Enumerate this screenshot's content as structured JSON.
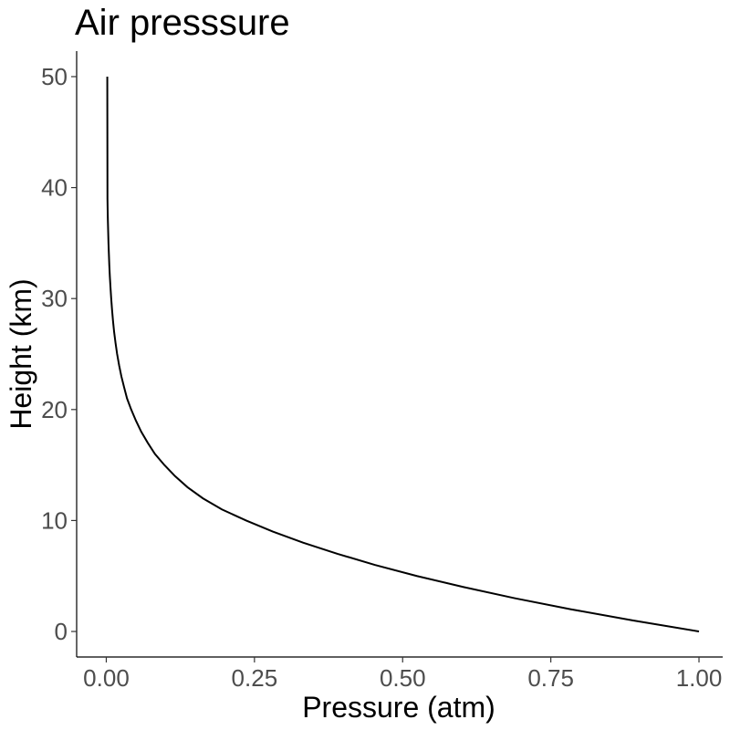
{
  "chart_data": {
    "type": "line",
    "title": "Air presssure",
    "xlabel": "Pressure (atm)",
    "ylabel": "Height (km)",
    "xlim": [
      -0.05,
      1.04
    ],
    "ylim": [
      -2.3,
      52.3
    ],
    "xticks": [
      0,
      0.25,
      0.5,
      0.75,
      1
    ],
    "xtick_labels": [
      "0.00",
      "0.25",
      "0.50",
      "0.75",
      "1.00"
    ],
    "yticks": [
      0,
      10,
      20,
      30,
      40,
      50
    ],
    "ytick_labels": [
      "0",
      "10",
      "20",
      "30",
      "40",
      "50"
    ],
    "grid": false,
    "legend": "none",
    "series": [
      {
        "color": "#000000",
        "x": [
          1.0,
          0.888,
          0.784,
          0.689,
          0.603,
          0.524,
          0.453,
          0.39,
          0.332,
          0.281,
          0.236,
          0.195,
          0.163,
          0.137,
          0.116,
          0.098,
          0.082,
          0.07,
          0.059,
          0.05,
          0.042,
          0.035,
          0.0301,
          0.0254,
          0.0216,
          0.0183,
          0.0156,
          0.0132,
          0.0113,
          0.0097,
          0.0083,
          0.0071,
          0.006,
          0.0051,
          0.0044,
          0.0037,
          0.0032,
          0.0027,
          0.0023,
          0.002,
          0.0017
        ],
        "y": [
          0,
          1,
          2,
          3,
          4,
          5,
          6,
          7,
          8,
          9,
          10,
          11,
          12,
          13,
          14,
          15,
          16,
          17,
          18,
          19,
          20,
          21,
          22,
          23,
          24,
          25,
          26,
          27,
          28,
          29,
          30,
          31,
          32,
          33,
          34,
          35,
          36,
          37,
          38,
          39,
          50
        ]
      }
    ]
  }
}
